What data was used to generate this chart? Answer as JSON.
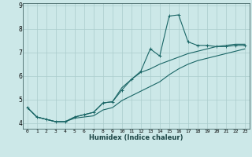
{
  "xlabel": "Humidex (Indice chaleur)",
  "ylabel": "",
  "bg_color": "#cce8e8",
  "grid_color": "#aacccc",
  "line_color": "#1a6666",
  "xlim": [
    -0.5,
    23.5
  ],
  "ylim": [
    3.75,
    9.1
  ],
  "yticks": [
    4,
    5,
    6,
    7,
    8,
    9
  ],
  "xtick_labels": [
    "0",
    "1",
    "2",
    "3",
    "4",
    "5",
    "6",
    "7",
    "8",
    "9",
    "10",
    "11",
    "12",
    "13",
    "14",
    "15",
    "16",
    "17",
    "18",
    "19",
    "20",
    "21",
    "22",
    "23"
  ],
  "line1_x": [
    0,
    1,
    2,
    3,
    4,
    5,
    6,
    7,
    8,
    9,
    10,
    11,
    12,
    13,
    14,
    15,
    16,
    17,
    18,
    19,
    20,
    21,
    22,
    23
  ],
  "line1_y": [
    4.65,
    4.25,
    4.15,
    4.05,
    4.05,
    4.25,
    4.35,
    4.45,
    4.85,
    4.9,
    5.4,
    5.85,
    6.2,
    7.15,
    6.85,
    8.55,
    8.6,
    7.45,
    7.3,
    7.3,
    7.25,
    7.25,
    7.3,
    7.3
  ],
  "line2_y": [
    4.65,
    4.25,
    4.15,
    4.05,
    4.05,
    4.25,
    4.35,
    4.45,
    4.85,
    4.9,
    5.5,
    5.85,
    6.15,
    6.3,
    6.5,
    6.65,
    6.8,
    6.95,
    7.05,
    7.15,
    7.25,
    7.3,
    7.35,
    7.35
  ],
  "line3_y": [
    4.65,
    4.25,
    4.15,
    4.05,
    4.05,
    4.2,
    4.25,
    4.3,
    4.55,
    4.65,
    4.95,
    5.15,
    5.35,
    5.55,
    5.75,
    6.05,
    6.3,
    6.5,
    6.65,
    6.75,
    6.85,
    6.95,
    7.05,
    7.15
  ]
}
